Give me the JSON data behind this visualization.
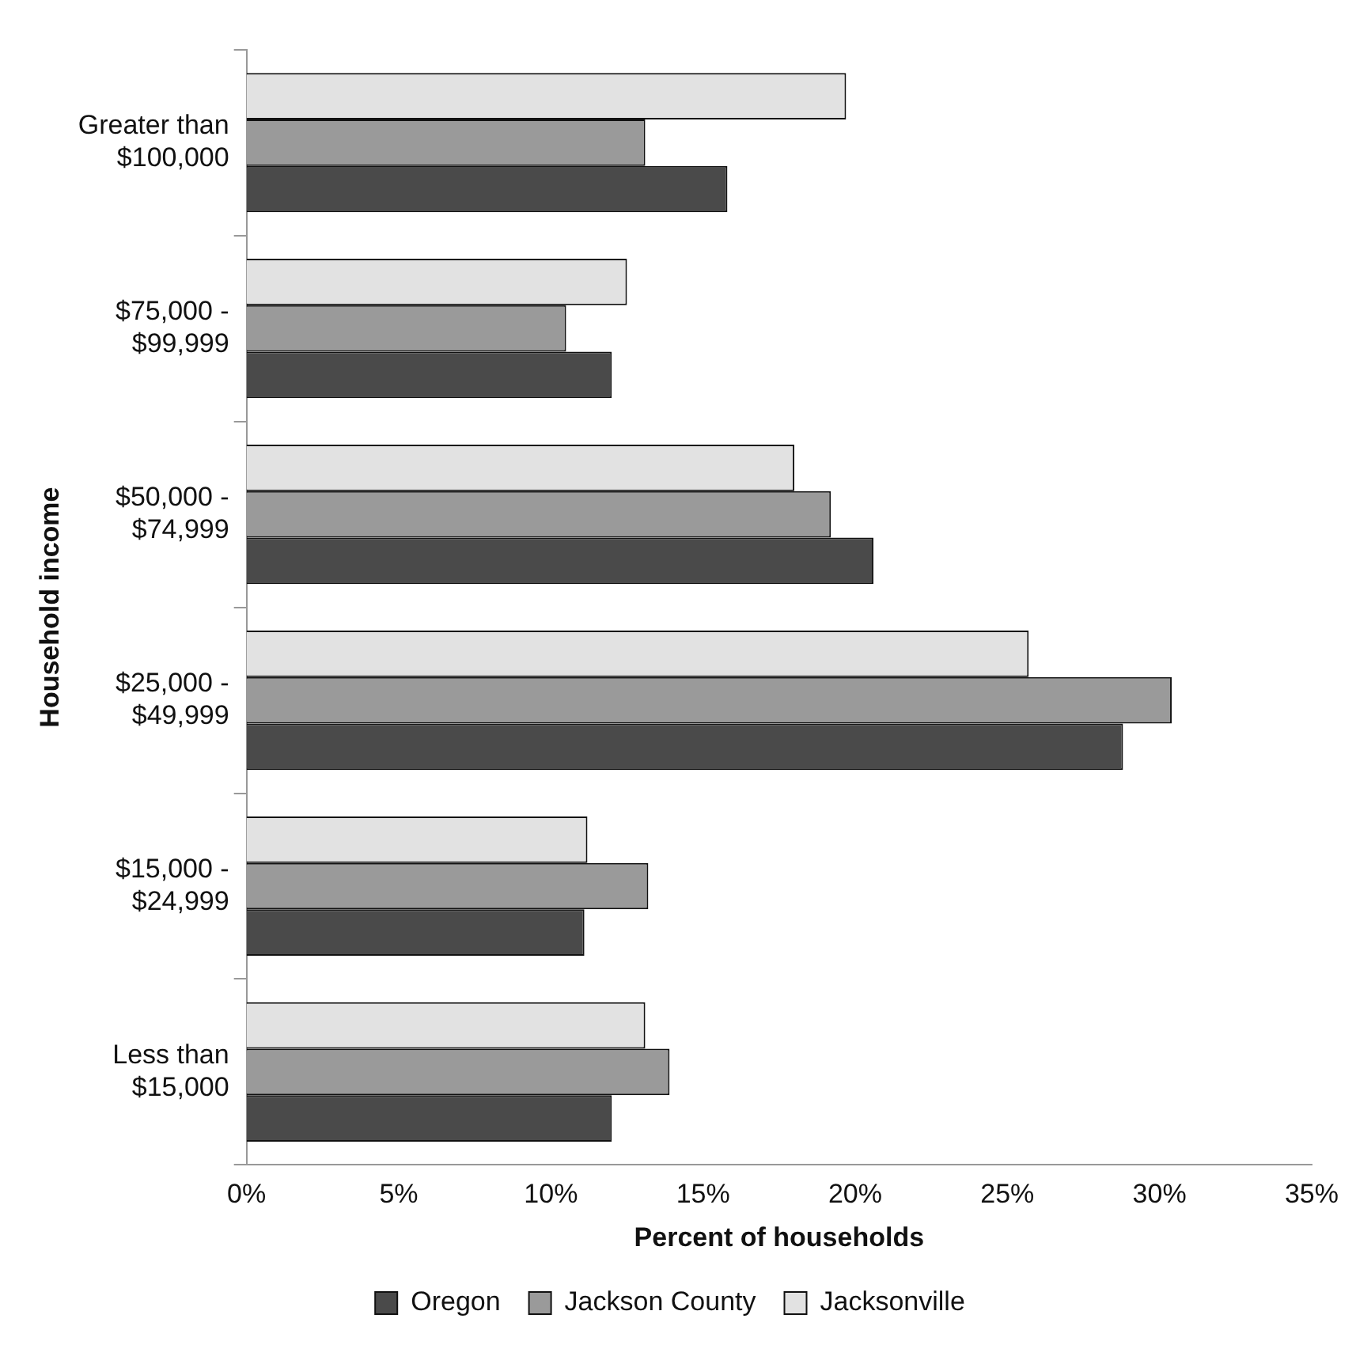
{
  "chart_data": {
    "type": "bar",
    "orientation": "horizontal",
    "xlabel": "Percent of households",
    "ylabel": "Household income",
    "categories": [
      "Greater than\n$100,000",
      "$75,000 -\n$99,999",
      "$50,000 -\n$74,999",
      "$25,000 -\n$49,999",
      "$15,000 -\n$24,999",
      "Less than\n$15,000"
    ],
    "series": [
      {
        "name": "Oregon",
        "color": "#4a4a4a",
        "values": [
          15.8,
          12.0,
          20.6,
          28.8,
          11.1,
          12.0
        ]
      },
      {
        "name": "Jackson County",
        "color": "#9a9a9a",
        "values": [
          13.1,
          10.5,
          19.2,
          30.4,
          13.2,
          13.9
        ]
      },
      {
        "name": "Jacksonville",
        "color": "#e2e2e2",
        "values": [
          19.7,
          12.5,
          18.0,
          25.7,
          11.2,
          13.1
        ]
      }
    ],
    "xlim": [
      0,
      35
    ],
    "xticks": [
      {
        "value": 0,
        "label": "0%"
      },
      {
        "value": 5,
        "label": "5%"
      },
      {
        "value": 10,
        "label": "10%"
      },
      {
        "value": 15,
        "label": "15%"
      },
      {
        "value": 20,
        "label": "20%"
      },
      {
        "value": 25,
        "label": "25%"
      },
      {
        "value": 30,
        "label": "30%"
      },
      {
        "value": 35,
        "label": "35%"
      }
    ],
    "grid": false,
    "legend": "bottom"
  }
}
